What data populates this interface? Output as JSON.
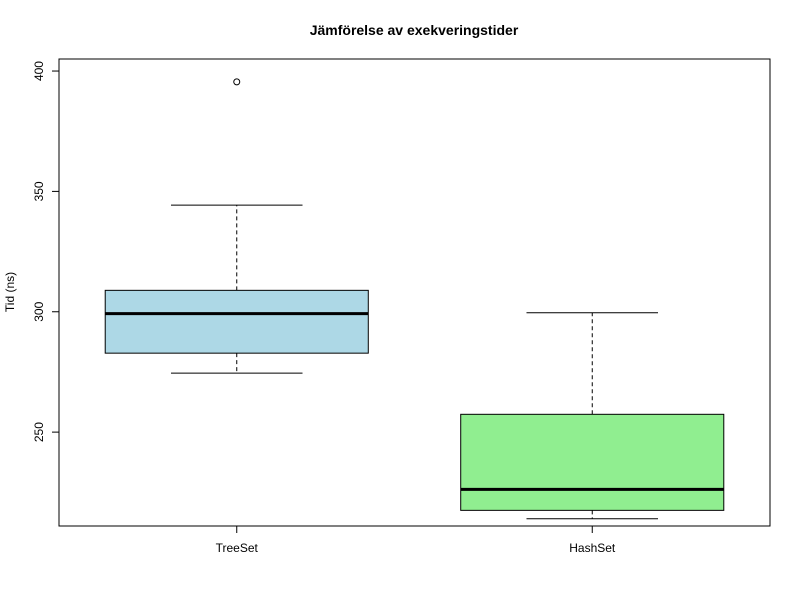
{
  "chart_data": {
    "type": "boxplot",
    "title": "Jämförelse av exekveringstider",
    "xlabel": "",
    "ylabel": "Tid (ns)",
    "ylim": [
      211,
      405
    ],
    "yticks": [
      250,
      300,
      350,
      400
    ],
    "categories": [
      "TreeSet",
      "HashSet"
    ],
    "boxes": [
      {
        "name": "TreeSet",
        "whisker_low": 274.5,
        "q1": 282.8,
        "median": 299.2,
        "q3": 308.9,
        "whisker_high": 344.3,
        "outliers": [
          395.5
        ],
        "color": "#add8e6"
      },
      {
        "name": "HashSet",
        "whisker_low": 214.0,
        "q1": 217.5,
        "median": 226.2,
        "q3": 257.4,
        "whisker_high": 299.6,
        "outliers": [],
        "color": "#90ee90"
      }
    ],
    "grid": false,
    "legend": "none"
  }
}
